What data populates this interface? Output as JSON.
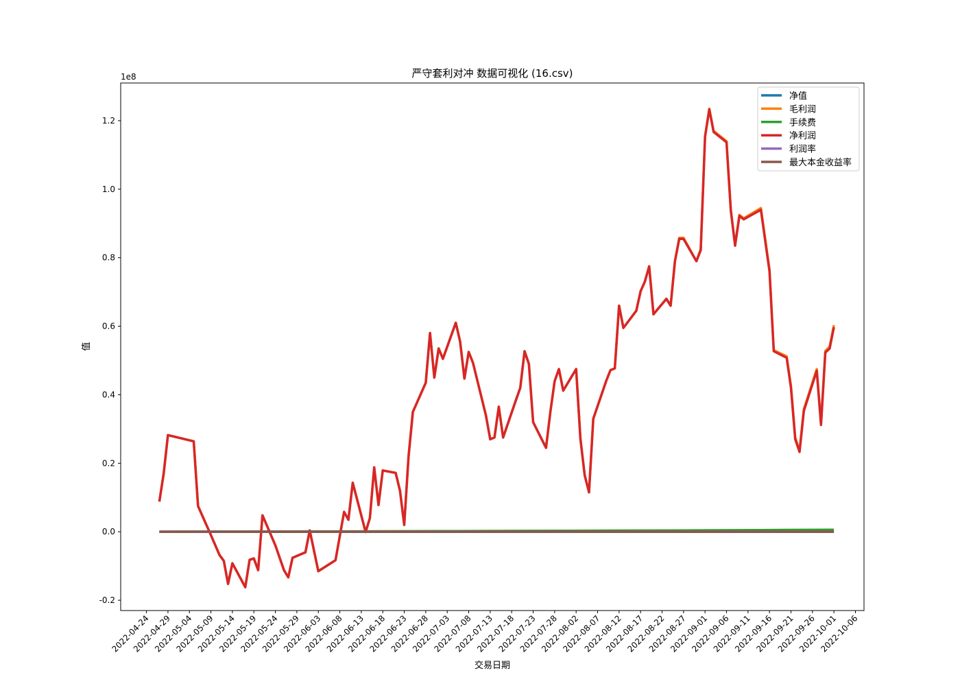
{
  "chart_data": {
    "type": "line",
    "title": "严守套利对冲 数据可视化 (16.csv)",
    "xlabel": "交易日期",
    "ylabel": "值",
    "y_scale_label": "1e8",
    "y_scale": 100000000,
    "ylim": [
      -0.23,
      1.31
    ],
    "xlim": [
      "2022-04-18",
      "2022-10-08"
    ],
    "y_ticks": [
      -0.2,
      0.0,
      0.2,
      0.4,
      0.6,
      0.8,
      1.0,
      1.2
    ],
    "y_tick_labels": [
      "-0.2",
      "0.0",
      "0.2",
      "0.4",
      "0.6",
      "0.8",
      "1.0",
      "1.2"
    ],
    "x_tick_labels": [
      "2022-04-24",
      "2022-04-29",
      "2022-05-04",
      "2022-05-09",
      "2022-05-14",
      "2022-05-19",
      "2022-05-24",
      "2022-05-29",
      "2022-06-03",
      "2022-06-08",
      "2022-06-13",
      "2022-06-18",
      "2022-06-23",
      "2022-06-28",
      "2022-07-03",
      "2022-07-08",
      "2022-07-13",
      "2022-07-18",
      "2022-07-23",
      "2022-07-28",
      "2022-08-02",
      "2022-08-07",
      "2022-08-12",
      "2022-08-17",
      "2022-08-22",
      "2022-08-27",
      "2022-09-01",
      "2022-09-06",
      "2022-09-11",
      "2022-09-16",
      "2022-09-21",
      "2022-09-26",
      "2022-10-01",
      "2022-10-06"
    ],
    "grid": false,
    "legend_position": "top-right",
    "series": [
      {
        "name": "净值",
        "color": "#1f77b4",
        "points": [
          [
            "2022-04-27",
            0.0
          ],
          [
            "2022-09-29",
            0.0
          ]
        ]
      },
      {
        "name": "毛利润",
        "color": "#ff7f0e",
        "points": [
          [
            "2022-04-27",
            0.088
          ],
          [
            "2022-04-28",
            0.17
          ],
          [
            "2022-04-29",
            0.282
          ],
          [
            "2022-05-05",
            0.264
          ],
          [
            "2022-05-06",
            0.075
          ],
          [
            "2022-05-09",
            -0.01
          ],
          [
            "2022-05-11",
            -0.068
          ],
          [
            "2022-05-12",
            -0.085
          ],
          [
            "2022-05-13",
            -0.152
          ],
          [
            "2022-05-14",
            -0.092
          ],
          [
            "2022-05-17",
            -0.162
          ],
          [
            "2022-05-18",
            -0.082
          ],
          [
            "2022-05-19",
            -0.078
          ],
          [
            "2022-05-20",
            -0.112
          ],
          [
            "2022-05-21",
            0.048
          ],
          [
            "2022-05-24",
            -0.04
          ],
          [
            "2022-05-26",
            -0.112
          ],
          [
            "2022-05-27",
            -0.133
          ],
          [
            "2022-05-28",
            -0.076
          ],
          [
            "2022-05-31",
            -0.06
          ],
          [
            "2022-06-01",
            0.004
          ],
          [
            "2022-06-03",
            -0.115
          ],
          [
            "2022-06-07",
            -0.083
          ],
          [
            "2022-06-09",
            0.058
          ],
          [
            "2022-06-10",
            0.035
          ],
          [
            "2022-06-11",
            0.143
          ],
          [
            "2022-06-14",
            -0.001
          ],
          [
            "2022-06-15",
            0.04
          ],
          [
            "2022-06-16",
            0.188
          ],
          [
            "2022-06-17",
            0.078
          ],
          [
            "2022-06-18",
            0.179
          ],
          [
            "2022-06-21",
            0.172
          ],
          [
            "2022-06-22",
            0.12
          ],
          [
            "2022-06-23",
            0.02
          ],
          [
            "2022-06-24",
            0.22
          ],
          [
            "2022-06-25",
            0.35
          ],
          [
            "2022-06-28",
            0.435
          ],
          [
            "2022-06-29",
            0.58
          ],
          [
            "2022-06-30",
            0.45
          ],
          [
            "2022-07-01",
            0.535
          ],
          [
            "2022-07-02",
            0.505
          ],
          [
            "2022-07-05",
            0.61
          ],
          [
            "2022-07-06",
            0.555
          ],
          [
            "2022-07-07",
            0.447
          ],
          [
            "2022-07-08",
            0.525
          ],
          [
            "2022-07-09",
            0.493
          ],
          [
            "2022-07-12",
            0.34
          ],
          [
            "2022-07-13",
            0.27
          ],
          [
            "2022-07-14",
            0.275
          ],
          [
            "2022-07-15",
            0.365
          ],
          [
            "2022-07-16",
            0.275
          ],
          [
            "2022-07-19",
            0.385
          ],
          [
            "2022-07-20",
            0.42
          ],
          [
            "2022-07-21",
            0.527
          ],
          [
            "2022-07-22",
            0.49
          ],
          [
            "2022-07-23",
            0.32
          ],
          [
            "2022-07-26",
            0.245
          ],
          [
            "2022-07-27",
            0.35
          ],
          [
            "2022-07-28",
            0.44
          ],
          [
            "2022-07-29",
            0.475
          ],
          [
            "2022-07-30",
            0.412
          ],
          [
            "2022-08-02",
            0.475
          ],
          [
            "2022-08-03",
            0.27
          ],
          [
            "2022-08-04",
            0.165
          ],
          [
            "2022-08-05",
            0.115
          ],
          [
            "2022-08-06",
            0.33
          ],
          [
            "2022-08-09",
            0.44
          ],
          [
            "2022-08-10",
            0.472
          ],
          [
            "2022-08-11",
            0.477
          ],
          [
            "2022-08-12",
            0.66
          ],
          [
            "2022-08-13",
            0.595
          ],
          [
            "2022-08-16",
            0.645
          ],
          [
            "2022-08-17",
            0.702
          ],
          [
            "2022-08-18",
            0.73
          ],
          [
            "2022-08-19",
            0.775
          ],
          [
            "2022-08-20",
            0.635
          ],
          [
            "2022-08-23",
            0.68
          ],
          [
            "2022-08-24",
            0.66
          ],
          [
            "2022-08-25",
            0.79
          ],
          [
            "2022-08-26",
            0.858
          ],
          [
            "2022-08-27",
            0.858
          ],
          [
            "2022-08-30",
            0.79
          ],
          [
            "2022-08-31",
            0.825
          ],
          [
            "2022-09-01",
            1.155
          ],
          [
            "2022-09-02",
            1.235
          ],
          [
            "2022-09-03",
            1.17
          ],
          [
            "2022-09-06",
            1.14
          ],
          [
            "2022-09-07",
            0.94
          ],
          [
            "2022-09-08",
            0.838
          ],
          [
            "2022-09-09",
            0.925
          ],
          [
            "2022-09-10",
            0.915
          ],
          [
            "2022-09-14",
            0.945
          ],
          [
            "2022-09-16",
            0.765
          ],
          [
            "2022-09-17",
            0.53
          ],
          [
            "2022-09-20",
            0.512
          ],
          [
            "2022-09-21",
            0.425
          ],
          [
            "2022-09-22",
            0.275
          ],
          [
            "2022-09-23",
            0.237
          ],
          [
            "2022-09-24",
            0.358
          ],
          [
            "2022-09-27",
            0.475
          ],
          [
            "2022-09-28",
            0.316
          ],
          [
            "2022-09-29",
            0.528
          ],
          [
            "2022-09-30",
            0.54
          ],
          [
            "2022-10-01",
            0.603
          ]
        ]
      },
      {
        "name": "手续费",
        "color": "#2ca02c",
        "points": [
          [
            "2022-04-27",
            0.0
          ],
          [
            "2022-06-01",
            0.001
          ],
          [
            "2022-07-05",
            0.002
          ],
          [
            "2022-08-02",
            0.003
          ],
          [
            "2022-08-27",
            0.004
          ],
          [
            "2022-09-14",
            0.005
          ],
          [
            "2022-10-01",
            0.006
          ]
        ]
      },
      {
        "name": "净利润",
        "color": "#d62728",
        "points": [
          [
            "2022-04-27",
            0.088
          ],
          [
            "2022-04-28",
            0.17
          ],
          [
            "2022-04-29",
            0.282
          ],
          [
            "2022-05-05",
            0.264
          ],
          [
            "2022-05-06",
            0.075
          ],
          [
            "2022-05-09",
            -0.01
          ],
          [
            "2022-05-11",
            -0.068
          ],
          [
            "2022-05-12",
            -0.085
          ],
          [
            "2022-05-13",
            -0.152
          ],
          [
            "2022-05-14",
            -0.092
          ],
          [
            "2022-05-17",
            -0.162
          ],
          [
            "2022-05-18",
            -0.082
          ],
          [
            "2022-05-19",
            -0.078
          ],
          [
            "2022-05-20",
            -0.112
          ],
          [
            "2022-05-21",
            0.048
          ],
          [
            "2022-05-24",
            -0.04
          ],
          [
            "2022-05-26",
            -0.112
          ],
          [
            "2022-05-27",
            -0.133
          ],
          [
            "2022-05-28",
            -0.076
          ],
          [
            "2022-05-31",
            -0.06
          ],
          [
            "2022-06-01",
            0.004
          ],
          [
            "2022-06-03",
            -0.115
          ],
          [
            "2022-06-07",
            -0.083
          ],
          [
            "2022-06-09",
            0.058
          ],
          [
            "2022-06-10",
            0.035
          ],
          [
            "2022-06-11",
            0.143
          ],
          [
            "2022-06-14",
            -0.001
          ],
          [
            "2022-06-15",
            0.04
          ],
          [
            "2022-06-16",
            0.188
          ],
          [
            "2022-06-17",
            0.078
          ],
          [
            "2022-06-18",
            0.179
          ],
          [
            "2022-06-21",
            0.172
          ],
          [
            "2022-06-22",
            0.12
          ],
          [
            "2022-06-23",
            0.02
          ],
          [
            "2022-06-24",
            0.22
          ],
          [
            "2022-06-25",
            0.35
          ],
          [
            "2022-06-28",
            0.435
          ],
          [
            "2022-06-29",
            0.58
          ],
          [
            "2022-06-30",
            0.45
          ],
          [
            "2022-07-01",
            0.535
          ],
          [
            "2022-07-02",
            0.505
          ],
          [
            "2022-07-05",
            0.61
          ],
          [
            "2022-07-06",
            0.555
          ],
          [
            "2022-07-07",
            0.447
          ],
          [
            "2022-07-08",
            0.525
          ],
          [
            "2022-07-09",
            0.493
          ],
          [
            "2022-07-12",
            0.34
          ],
          [
            "2022-07-13",
            0.27
          ],
          [
            "2022-07-14",
            0.275
          ],
          [
            "2022-07-15",
            0.365
          ],
          [
            "2022-07-16",
            0.275
          ],
          [
            "2022-07-19",
            0.385
          ],
          [
            "2022-07-20",
            0.42
          ],
          [
            "2022-07-21",
            0.527
          ],
          [
            "2022-07-22",
            0.49
          ],
          [
            "2022-07-23",
            0.32
          ],
          [
            "2022-07-26",
            0.245
          ],
          [
            "2022-07-27",
            0.35
          ],
          [
            "2022-07-28",
            0.44
          ],
          [
            "2022-07-29",
            0.475
          ],
          [
            "2022-07-30",
            0.412
          ],
          [
            "2022-08-02",
            0.475
          ],
          [
            "2022-08-03",
            0.27
          ],
          [
            "2022-08-04",
            0.165
          ],
          [
            "2022-08-05",
            0.115
          ],
          [
            "2022-08-06",
            0.33
          ],
          [
            "2022-08-09",
            0.44
          ],
          [
            "2022-08-10",
            0.472
          ],
          [
            "2022-08-11",
            0.477
          ],
          [
            "2022-08-12",
            0.66
          ],
          [
            "2022-08-13",
            0.595
          ],
          [
            "2022-08-16",
            0.645
          ],
          [
            "2022-08-17",
            0.702
          ],
          [
            "2022-08-18",
            0.73
          ],
          [
            "2022-08-19",
            0.775
          ],
          [
            "2022-08-20",
            0.635
          ],
          [
            "2022-08-23",
            0.68
          ],
          [
            "2022-08-24",
            0.66
          ],
          [
            "2022-08-25",
            0.79
          ],
          [
            "2022-08-26",
            0.855
          ],
          [
            "2022-08-27",
            0.855
          ],
          [
            "2022-08-30",
            0.79
          ],
          [
            "2022-08-31",
            0.822
          ],
          [
            "2022-09-01",
            1.153
          ],
          [
            "2022-09-02",
            1.233
          ],
          [
            "2022-09-03",
            1.167
          ],
          [
            "2022-09-06",
            1.137
          ],
          [
            "2022-09-07",
            0.937
          ],
          [
            "2022-09-08",
            0.835
          ],
          [
            "2022-09-09",
            0.922
          ],
          [
            "2022-09-10",
            0.912
          ],
          [
            "2022-09-14",
            0.94
          ],
          [
            "2022-09-16",
            0.76
          ],
          [
            "2022-09-17",
            0.527
          ],
          [
            "2022-09-20",
            0.508
          ],
          [
            "2022-09-21",
            0.42
          ],
          [
            "2022-09-22",
            0.27
          ],
          [
            "2022-09-23",
            0.233
          ],
          [
            "2022-09-24",
            0.353
          ],
          [
            "2022-09-27",
            0.47
          ],
          [
            "2022-09-28",
            0.312
          ],
          [
            "2022-09-29",
            0.523
          ],
          [
            "2022-09-30",
            0.535
          ],
          [
            "2022-10-01",
            0.597
          ]
        ]
      },
      {
        "name": "利润率",
        "color": "#9467bd",
        "points": [
          [
            "2022-04-27",
            0.0
          ],
          [
            "2022-10-01",
            0.0
          ]
        ]
      },
      {
        "name": "最大本金收益率",
        "color": "#8c564b",
        "points": [
          [
            "2022-04-27",
            0.0
          ],
          [
            "2022-10-01",
            0.0
          ]
        ]
      }
    ]
  }
}
